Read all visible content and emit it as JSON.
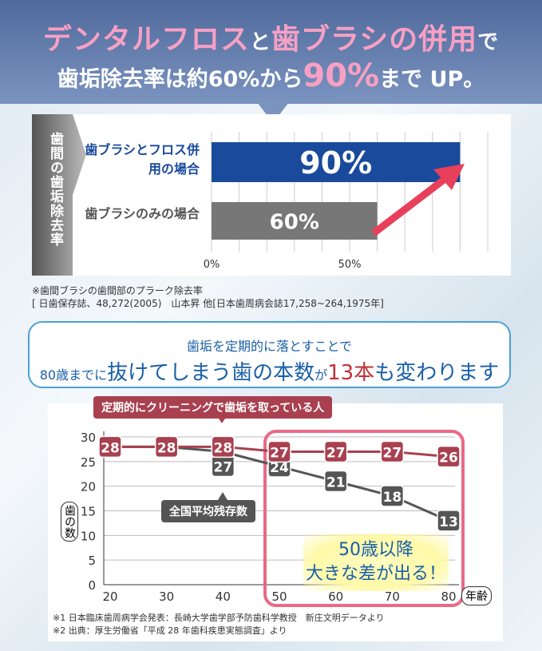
{
  "header": {
    "line1_a": "デンタルフロス",
    "line1_b": "と",
    "line1_c": "歯ブラシの併用",
    "line1_d": "で",
    "line2_a": "歯垢除去率は約60%から",
    "line2_b": "90%",
    "line2_c": "まで UP。"
  },
  "bar_side_label": "歯間の歯垢除去率",
  "footnote1": {
    "line1": "※歯間ブラシの歯間部のプラーク除去率",
    "line2": "[ 日歯保存誌、48,272(2005)　山本昇 他[日本歯周病会誌17,258~264,1975年]"
  },
  "message": {
    "line1": "歯垢を定期的に落とすことで",
    "line2_a": "80歳までに",
    "line2_b": "抜けてしまう歯の本数",
    "line2_c": "が",
    "line2_d": "13本",
    "line2_e": "も変わります"
  },
  "callout": {
    "line1": "50歳以降",
    "line2": "大きな差が出る！"
  },
  "footnote2": {
    "line1": "※1 日本臨床歯周病学会発表：長崎大学歯学部予防歯科学教授　新庄文明データより",
    "line2": "※2 出典：厚生労働省「平成 28 年歯科疾患実態調査」より"
  },
  "colors": {
    "blue": "#1a4a9c",
    "gray": "#777777",
    "red": "#a84050",
    "darkgray": "#555555",
    "pink": "#e86a86"
  },
  "chart_data": [
    {
      "type": "bar",
      "orientation": "horizontal",
      "categories": [
        "歯ブラシとフロス併用の場合",
        "歯ブラシのみの場合"
      ],
      "values": [
        90,
        60
      ],
      "value_labels": [
        "90%",
        "60%"
      ],
      "xticks": [
        "0%",
        "50%"
      ],
      "xlim": [
        0,
        100
      ],
      "grid": true
    },
    {
      "type": "line",
      "x": [
        20,
        30,
        40,
        50,
        60,
        70,
        80
      ],
      "xticks": [
        "20",
        "30",
        "40",
        "50",
        "60",
        "70",
        "80"
      ],
      "yticks": [
        "0",
        "5",
        "10",
        "15",
        "20",
        "25",
        "30"
      ],
      "ylim": [
        0,
        30
      ],
      "xlabel": "年齢",
      "ylabel": "歯の数",
      "series": [
        {
          "name": "定期的にクリーニングで歯垢を取っている人",
          "values": [
            28,
            28,
            28,
            27,
            27,
            27,
            26
          ]
        },
        {
          "name": "全国平均残存数",
          "values": [
            28,
            28,
            27,
            24,
            21,
            18,
            13
          ]
        }
      ]
    }
  ]
}
